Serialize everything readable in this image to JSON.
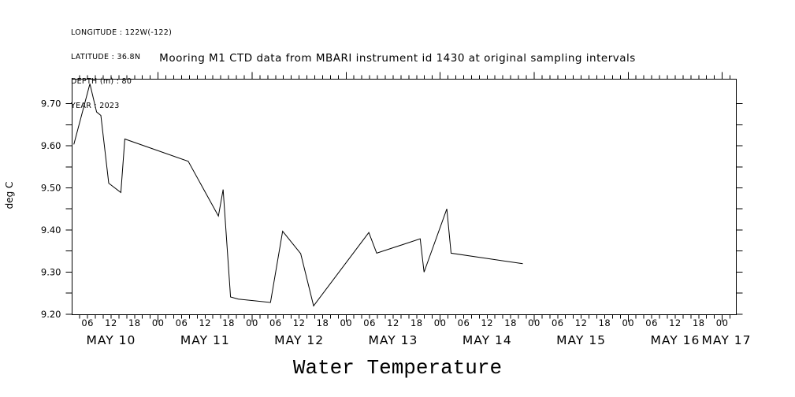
{
  "header": {
    "metadata_lines": [
      "LONGITUDE : 122W(-122)",
      "LATITUDE : 36.8N",
      "DEPTH (m) : 80",
      "YEAR : 2023"
    ]
  },
  "title": "Mooring M1 CTD data from MBARI instrument id 1430 at original sampling intervals",
  "caption": "Water Temperature",
  "chart_data": {
    "type": "line",
    "title": "Mooring M1 CTD data from MBARI instrument id 1430 at original sampling intervals",
    "ylabel": "deg C",
    "xlabel": "Water Temperature",
    "x_unit": "hours since 2023-05-10 00:00",
    "xlim_hours": [
      2.05,
      171.6
    ],
    "ylim": [
      9.199,
      9.758
    ],
    "y_major_ticks": [
      9.2,
      9.3,
      9.4,
      9.5,
      9.6,
      9.7
    ],
    "y_tick_step": 0.05,
    "x_minor_step_hours": 2,
    "x_major_step_hours": 24,
    "x_hour_label_step": 6,
    "x_day_labels": [
      {
        "text": "MAY 10",
        "noon_h": 12
      },
      {
        "text": "MAY 11",
        "noon_h": 36
      },
      {
        "text": "MAY 12",
        "noon_h": 60
      },
      {
        "text": "MAY 13",
        "noon_h": 84
      },
      {
        "text": "MAY 14",
        "noon_h": 108
      },
      {
        "text": "MAY 15",
        "noon_h": 132
      },
      {
        "text": "MAY 16",
        "noon_h": 156
      },
      {
        "text": "MAY 17",
        "noon_h": 180
      }
    ],
    "grid": false,
    "legend": "none",
    "line_color": "#000000",
    "background_color": "#ffffff",
    "series": [
      {
        "name": "water temperature (deg C)",
        "points": [
          [
            2.5,
            9.603
          ],
          [
            6.6,
            9.747
          ],
          [
            8.3,
            9.68
          ],
          [
            9.4,
            9.672
          ],
          [
            11.4,
            9.511
          ],
          [
            14.5,
            9.489
          ],
          [
            15.5,
            9.616
          ],
          [
            31.7,
            9.563
          ],
          [
            39.4,
            9.433
          ],
          [
            40.6,
            9.496
          ],
          [
            42.5,
            9.241
          ],
          [
            44.5,
            9.236
          ],
          [
            52.7,
            9.228
          ],
          [
            55.8,
            9.397
          ],
          [
            60.4,
            9.344
          ],
          [
            63.7,
            9.22
          ],
          [
            77.8,
            9.394
          ],
          [
            79.8,
            9.345
          ],
          [
            90.9,
            9.379
          ],
          [
            91.9,
            9.3
          ],
          [
            97.7,
            9.45
          ],
          [
            98.8,
            9.345
          ],
          [
            117.1,
            9.32
          ]
        ]
      }
    ]
  }
}
